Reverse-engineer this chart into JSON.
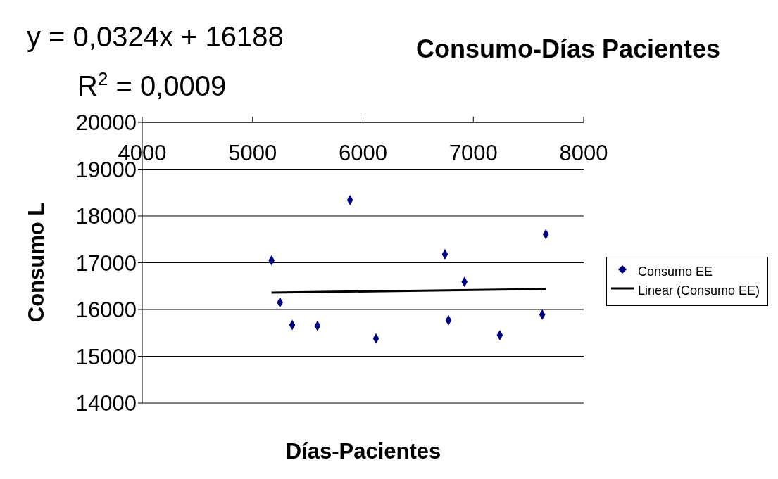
{
  "chart_data": {
    "type": "scatter",
    "title": "Consumo-Días Pacientes",
    "xlabel": "Días-Pacientes",
    "ylabel": "Consumo L",
    "annotations": [
      "y = 0,0324x + 16188",
      "R$^{2}$ = 0,0009"
    ],
    "xlim": [
      4000,
      8000
    ],
    "xticks": [
      4000,
      5000,
      6000,
      7000,
      8000
    ],
    "ylim": [
      14000,
      20000
    ],
    "yticks": [
      14000,
      15000,
      16000,
      17000,
      18000,
      19000,
      20000
    ],
    "grid": "y",
    "legend": "right",
    "marker": "diamond",
    "series": [
      {
        "name": "Consumo EE",
        "color": "#000080",
        "x": [
          5172,
          5248,
          5359,
          5588,
          5883,
          6118,
          6743,
          6775,
          6920,
          7240,
          7625,
          7657
        ],
        "values": [
          17050,
          16150,
          15670,
          15650,
          18340,
          15380,
          17180,
          15770,
          16590,
          15450,
          15890,
          17610
        ]
      },
      {
        "name": "Linear (Consumo EE)",
        "type": "line",
        "color": "#000000",
        "x": [
          5172,
          7657
        ],
        "values": [
          16360,
          16440
        ],
        "marker": "none"
      }
    ]
  }
}
